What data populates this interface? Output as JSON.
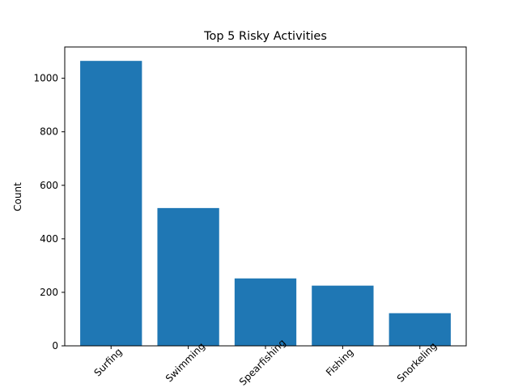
{
  "chart_data": {
    "type": "bar",
    "title": "Top 5 Risky Activities",
    "xlabel": "",
    "ylabel": "Count",
    "categories": [
      "Surfing",
      "Swimming",
      "Spearfishing",
      "Fishing",
      "Snorkeling"
    ],
    "values": [
      1065,
      515,
      252,
      225,
      122
    ],
    "ylim": [
      0,
      1117
    ],
    "yticks": [
      0,
      200,
      400,
      600,
      800,
      1000
    ],
    "bar_color": "#1f77b4",
    "grid": false,
    "legend": "none",
    "xtick_rotation_deg": 45
  }
}
